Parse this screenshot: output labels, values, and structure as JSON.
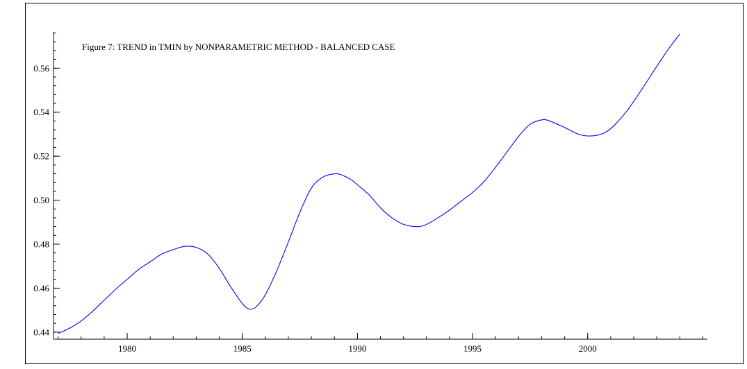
{
  "chart_data": {
    "type": "line",
    "title": "Figure 7: TREND in TMIN by NONPARAMETRIC METHOD - BALANCED CASE",
    "xlabel": "",
    "ylabel": "",
    "xlim": [
      1976.8,
      2005.2
    ],
    "ylim": [
      0.4368,
      0.5765
    ],
    "x_ticks": [
      1980,
      1985,
      1990,
      1995,
      2000
    ],
    "x_tick_labels": [
      "1980",
      "1985",
      "1990",
      "1995",
      "2000"
    ],
    "y_ticks": [
      0.44,
      0.46,
      0.48,
      0.5,
      0.52,
      0.54,
      0.56
    ],
    "y_tick_labels": [
      "0.44",
      "0.46",
      "0.48",
      "0.50",
      "0.52",
      "0.54",
      "0.56"
    ],
    "grid": false,
    "legend": "none",
    "series": [
      {
        "color": "#0000ff",
        "x": [
          1977.0,
          1977.5,
          1978.0,
          1978.5,
          1979.0,
          1979.5,
          1980.0,
          1980.5,
          1981.0,
          1981.5,
          1982.0,
          1982.5,
          1983.0,
          1983.5,
          1984.0,
          1984.5,
          1985.0,
          1985.3,
          1985.6,
          1986.0,
          1986.5,
          1987.0,
          1987.5,
          1988.0,
          1988.5,
          1989.0,
          1989.3,
          1989.7,
          1990.0,
          1990.5,
          1991.0,
          1991.5,
          1992.0,
          1992.6,
          1993.0,
          1993.5,
          1994.0,
          1994.5,
          1995.0,
          1995.5,
          1996.0,
          1996.5,
          1997.0,
          1997.5,
          1998.0,
          1998.3,
          1998.8,
          1999.2,
          1999.6,
          2000.0,
          2000.4,
          2000.8,
          2001.2,
          2001.7,
          2002.2,
          2002.7,
          2003.2,
          2003.6,
          2004.0
        ],
        "y": [
          0.4394,
          0.4418,
          0.4451,
          0.4495,
          0.4545,
          0.4595,
          0.464,
          0.4685,
          0.472,
          0.4755,
          0.4775,
          0.479,
          0.4785,
          0.4755,
          0.469,
          0.4605,
          0.453,
          0.4505,
          0.4515,
          0.457,
          0.468,
          0.481,
          0.4945,
          0.5055,
          0.5105,
          0.512,
          0.5115,
          0.5095,
          0.507,
          0.5025,
          0.4965,
          0.492,
          0.489,
          0.488,
          0.489,
          0.492,
          0.4955,
          0.4995,
          0.5035,
          0.5085,
          0.515,
          0.522,
          0.529,
          0.5345,
          0.5365,
          0.5362,
          0.534,
          0.532,
          0.53,
          0.5292,
          0.5295,
          0.531,
          0.5345,
          0.5405,
          0.548,
          0.556,
          0.564,
          0.57,
          0.5755
        ]
      }
    ]
  }
}
